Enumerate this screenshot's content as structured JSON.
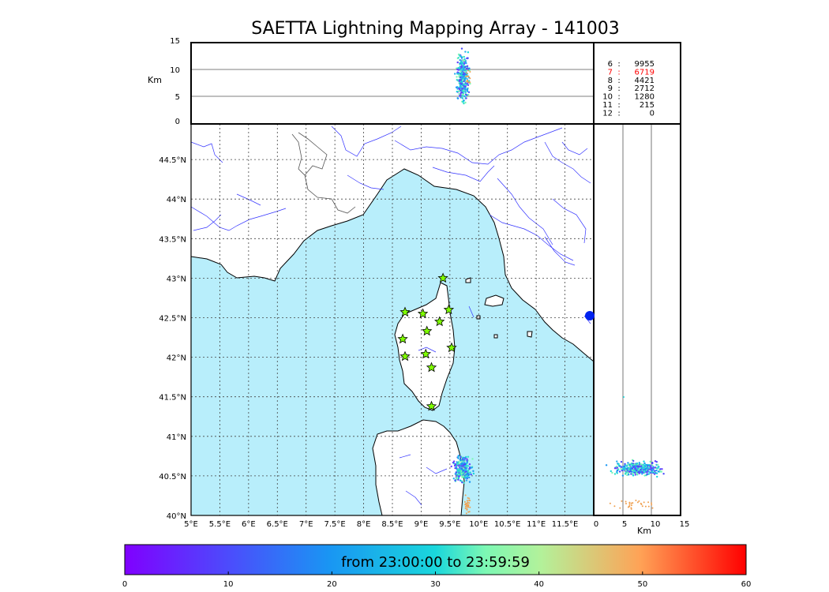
{
  "title": "SAETTA Lightning Mapping Array - 141003",
  "top_panel": {
    "ylabel": "Km",
    "yticks": [
      "0",
      "5",
      "10",
      "15"
    ]
  },
  "side_panel": {
    "xlabel": "Km",
    "xticks": [
      "0",
      "5",
      "10",
      "15"
    ]
  },
  "map": {
    "lon_ticks": [
      "5°E",
      "5.5°E",
      "6°E",
      "6.5°E",
      "7°E",
      "7.5°E",
      "8°E",
      "8.5°E",
      "9°E",
      "9.5°E",
      "10°E",
      "10.5°E",
      "11°E",
      "11.5°E"
    ],
    "lat_ticks": [
      "40°N",
      "40.5°N",
      "41°N",
      "41.5°N",
      "42°N",
      "42.5°N",
      "43°N",
      "43.5°N",
      "44°N",
      "44.5°N"
    ],
    "lon_range": [
      5.0,
      12.0
    ],
    "lat_range": [
      40.0,
      44.95
    ],
    "station_markers": [
      {
        "lon": 9.38,
        "lat": 43.0
      },
      {
        "lon": 8.72,
        "lat": 42.57
      },
      {
        "lon": 9.03,
        "lat": 42.55
      },
      {
        "lon": 9.48,
        "lat": 42.6
      },
      {
        "lon": 9.32,
        "lat": 42.45
      },
      {
        "lon": 9.1,
        "lat": 42.33
      },
      {
        "lon": 8.68,
        "lat": 42.23
      },
      {
        "lon": 9.53,
        "lat": 42.12
      },
      {
        "lon": 8.72,
        "lat": 42.01
      },
      {
        "lon": 9.08,
        "lat": 42.04
      },
      {
        "lon": 9.18,
        "lat": 41.87
      },
      {
        "lon": 9.18,
        "lat": 41.38
      }
    ]
  },
  "counts_table": [
    {
      "n": "6",
      "sep": ":",
      "count": "9955",
      "color": "#000000"
    },
    {
      "n": "7",
      "sep": ":",
      "count": "6719",
      "color": "#ff0000"
    },
    {
      "n": "8",
      "sep": ":",
      "count": "4421",
      "color": "#000000"
    },
    {
      "n": "9",
      "sep": ":",
      "count": "2712",
      "color": "#000000"
    },
    {
      "n": "10",
      "sep": ":",
      "count": "1280",
      "color": "#000000"
    },
    {
      "n": "11",
      "sep": ":",
      "count": "215",
      "color": "#000000"
    },
    {
      "n": "12",
      "sep": ":",
      "count": "0",
      "color": "#000000"
    }
  ],
  "colorbar": {
    "label": "from 23:00:00 to 23:59:59",
    "ticks": [
      "0",
      "10",
      "20",
      "30",
      "40",
      "50",
      "60"
    ],
    "colormap": "rainbow"
  },
  "colors": {
    "sea": "#b8eefb",
    "land": "#ffffff",
    "rivers": "#3333ff",
    "coast": "#000000",
    "star": "#7fff00"
  }
}
